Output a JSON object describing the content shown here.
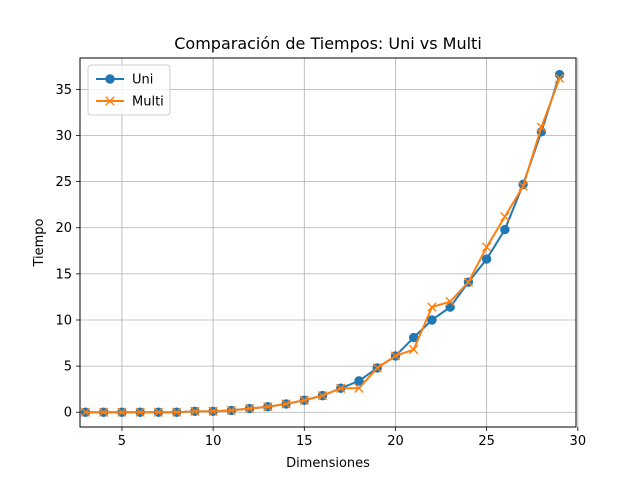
{
  "chart_data": {
    "type": "line",
    "title": "Comparación de Tiempos: Uni vs Multi",
    "xlabel": "Dimensiones",
    "ylabel": "Tiempo",
    "xlim": [
      2.7,
      29.9
    ],
    "ylim": [
      -1.6,
      38.4
    ],
    "xticks": [
      5,
      10,
      15,
      20,
      25,
      30
    ],
    "yticks": [
      0,
      5,
      10,
      15,
      20,
      25,
      30,
      35
    ],
    "grid": true,
    "legend_position": "top-left",
    "x": [
      3,
      4,
      5,
      6,
      7,
      8,
      9,
      10,
      11,
      12,
      13,
      14,
      15,
      16,
      17,
      18,
      19,
      20,
      21,
      22,
      23,
      24,
      25,
      26,
      27,
      28,
      29
    ],
    "series": [
      {
        "name": "Uni",
        "color": "#1f77b4",
        "marker": "circle",
        "values": [
          0.0,
          0.0,
          0.0,
          0.0,
          0.0,
          0.0,
          0.1,
          0.1,
          0.2,
          0.4,
          0.6,
          0.9,
          1.3,
          1.8,
          2.6,
          3.4,
          4.8,
          6.1,
          8.1,
          10.0,
          11.4,
          14.1,
          16.6,
          19.8,
          24.7,
          30.4,
          36.6
        ]
      },
      {
        "name": "Multi",
        "color": "#ff7f0e",
        "marker": "x",
        "values": [
          0.0,
          0.0,
          0.0,
          0.0,
          0.0,
          0.0,
          0.1,
          0.1,
          0.2,
          0.4,
          0.6,
          0.9,
          1.3,
          1.8,
          2.6,
          2.6,
          4.8,
          6.1,
          6.8,
          11.4,
          12.0,
          14.1,
          17.9,
          21.2,
          24.5,
          30.9,
          36.2
        ]
      }
    ]
  }
}
